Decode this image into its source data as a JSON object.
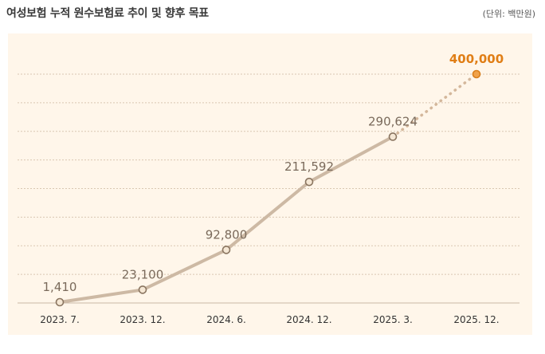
{
  "header": {
    "title": "여성보험 누적 원수보험료 추이 및 향후 목표",
    "unit": "(단위: 백만원)"
  },
  "colors": {
    "background": "#fff6ea",
    "actual_line": "#cdb9a4",
    "actual_marker_fill": "#f5e7d4",
    "actual_marker_stroke": "#8a7560",
    "target_line": "#d4b79b",
    "target_marker_fill": "#f0a24a",
    "target_marker_stroke": "#d97f1c",
    "label": "#7a6a5b",
    "target_label": "#e07e16",
    "axis": "#c9b8a5",
    "grid": "#d9c7b2"
  },
  "chart_data": {
    "type": "line",
    "title": "여성보험 누적 원수보험료 추이 및 향후 목표",
    "unit": "(단위: 백만원)",
    "categories": [
      "2023. 7.",
      "2023. 12.",
      "2024. 6.",
      "2024. 12.",
      "2025. 3.",
      "2025. 12."
    ],
    "series": [
      {
        "values": [
          1410,
          23100,
          92800,
          211592,
          290624,
          null
        ],
        "labels": [
          "1,410",
          "23,100",
          "92,800",
          "211,592",
          "290,624",
          ""
        ]
      },
      {
        "values": [
          null,
          null,
          null,
          null,
          290624,
          400000
        ],
        "labels": [
          "",
          "",
          "",
          "",
          "",
          "400,000"
        ],
        "style": "dotted"
      }
    ],
    "ylim": [
      0,
      400000
    ],
    "grid": true,
    "gridlines": 8
  }
}
